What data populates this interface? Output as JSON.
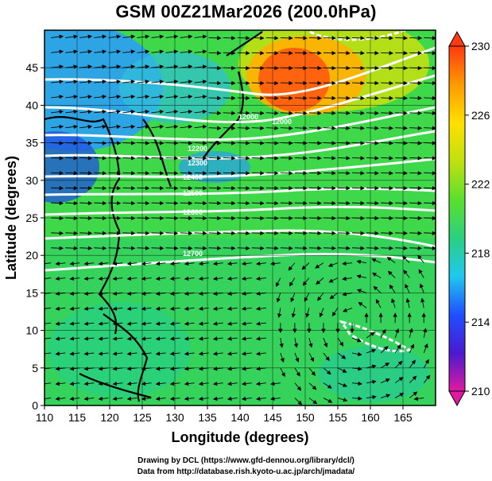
{
  "title": "GSM 00Z21Mar2026 (200.0hPa)",
  "x_axis_label": "Longitude (degrees)",
  "y_axis_label": "Latitude  (degrees)",
  "x_ticks": [
    110,
    115,
    120,
    125,
    130,
    135,
    140,
    145,
    150,
    155,
    160,
    165
  ],
  "y_ticks": [
    0,
    5,
    10,
    15,
    20,
    25,
    30,
    35,
    40,
    45
  ],
  "colorbar": {
    "ticks": [
      230,
      226,
      222,
      218,
      214,
      210
    ],
    "min": 210,
    "max": 230,
    "stops": [
      "#e01aa0",
      "#4a1ad0",
      "#1e50ff",
      "#20c8f0",
      "#2ad080",
      "#5ce02c",
      "#c0e010",
      "#ffe000",
      "#ff9a00",
      "#ff3a10"
    ]
  },
  "contour_labels": [
    "12000",
    "12000",
    "12200",
    "12300",
    "12400",
    "12500",
    "12600",
    "12700"
  ],
  "credit_line1": "Drawing by DCL (https://www.gfd-dennou.org/library/dcl/)",
  "credit_line2": "Data from http://database.rish.kyoto-u.ac.jp/arch/jmadata/"
}
